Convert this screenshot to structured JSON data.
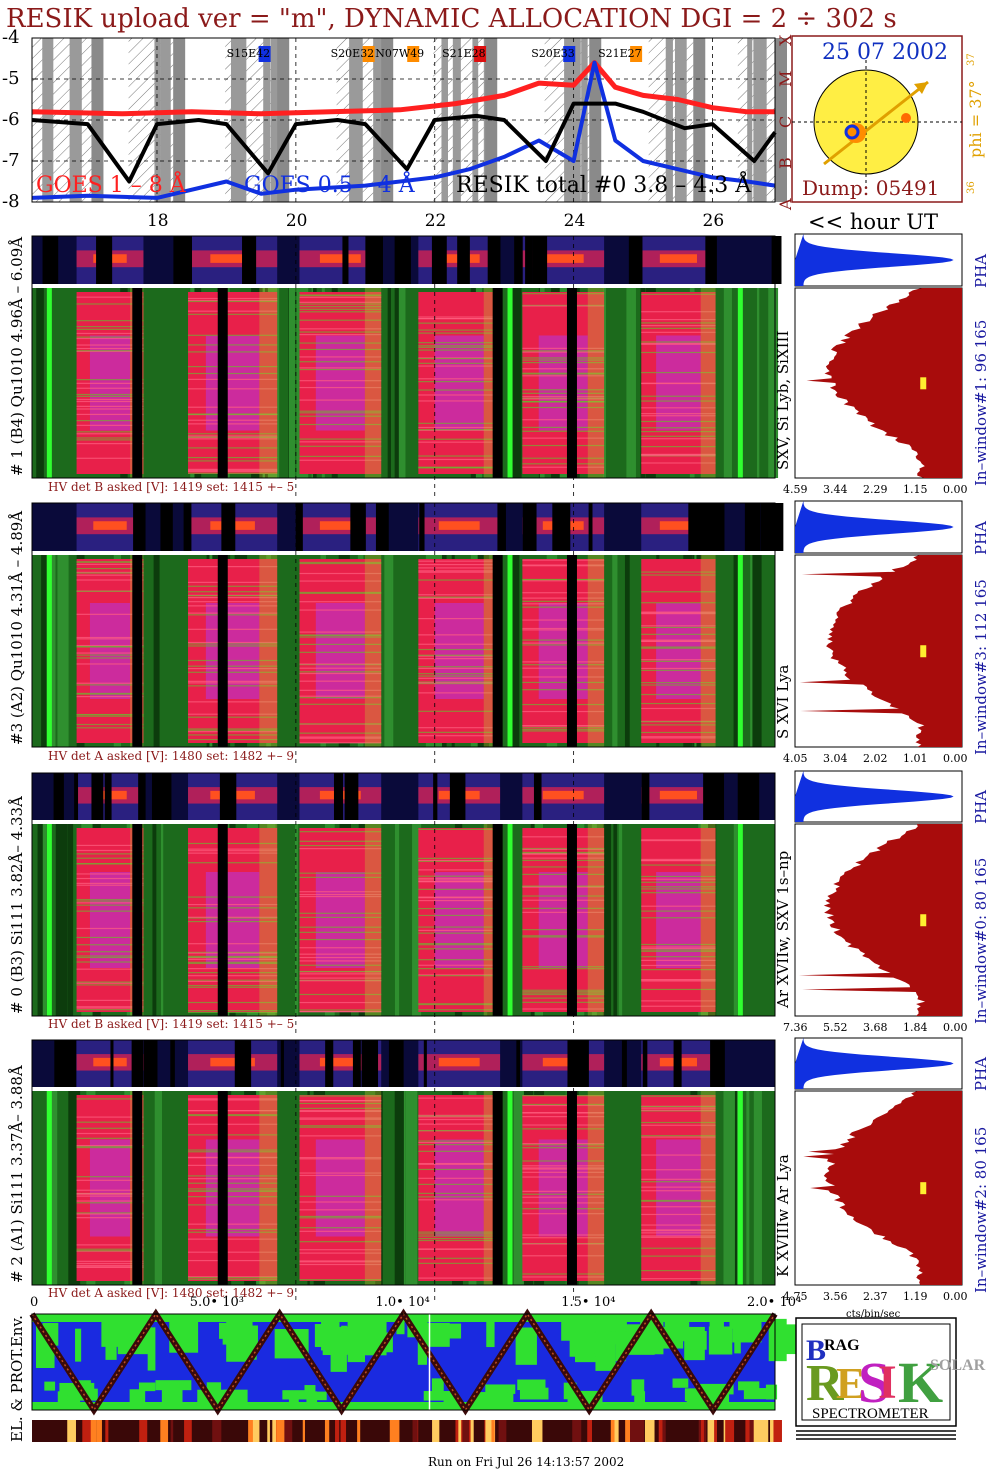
{
  "title": "RESIK upload ver = \"m\", DYNAMIC ALLOCATION  DGI =   2 ÷ 302 s",
  "goes_panel": {
    "y_ticks": [
      "-4",
      "-5",
      "-6",
      "-7",
      "-8"
    ],
    "class_letters": [
      "X",
      "M",
      "C",
      "B",
      "A"
    ],
    "active_regions": [
      "S15E42",
      "S20E32",
      "N07W49",
      "S21E28",
      "S20E33",
      "S21E27"
    ],
    "legend_goes_long": "GOES 1 – 8 Å",
    "legend_goes_short": "GOES 0.5 – 4 Å",
    "legend_resik": "RESIK total #0  3.8 – 4.3 Å",
    "colors": {
      "goes_long": "#ff2020",
      "goes_short": "#1030e0",
      "resik": "#000000"
    }
  },
  "sun_panel": {
    "date": "25 07 2002",
    "dump": "Dump: 05491",
    "phi_label": "phi = 37°",
    "phi_top": "37",
    "phi_bottom": "36"
  },
  "time_axis": {
    "hour_ticks": [
      "18",
      "20",
      "22",
      "24",
      "26"
    ],
    "unit_label": "<< hour UT"
  },
  "detectors": [
    {
      "label": "# 1 (B4) Qu1010 4.96Å – 6.09Å",
      "hv": "HV det B asked [V]:  1419 set:  1415  +–    5",
      "line_label": "SXV, Si Lyb, SiXIII",
      "window_label": "In–window#1:   96 165",
      "pha": "PHA",
      "cts_ticks": [
        "4.59",
        "3.44",
        "2.29",
        "1.15",
        "0.00"
      ]
    },
    {
      "label": "#3 (A2) Qu1010  4.31Å – 4.89Å",
      "hv": "HV det A asked [V]:  1480 set:  1482  +–    9",
      "line_label": "S XVI Lya",
      "window_label": "In–window#3:  112 165",
      "pha": "PHA",
      "cts_ticks": [
        "4.05",
        "3.04",
        "2.02",
        "1.01",
        "0.00"
      ]
    },
    {
      "label": "# 0 (B3) Si111  3.82Å– 4.33Å",
      "hv": "HV det B asked [V]:  1419 set:  1415  +–    5",
      "line_label": "Ar XVIIw,  SXV 1s–np",
      "window_label": "In–window#0:   80 165",
      "pha": "PHA",
      "cts_ticks": [
        "7.36",
        "5.52",
        "3.68",
        "1.84",
        "0.00"
      ]
    },
    {
      "label": "# 2 (A1) Si111  3.37Å–  3.88Å",
      "hv": "HV det A asked [V]:  1480 set:  1482  +–    9",
      "line_label": "K XVIIIw  Ar Lya",
      "window_label": "In–window#2:   80 165",
      "pha": "PHA",
      "cts_ticks": [
        "4.75",
        "3.56",
        "2.37",
        "1.19",
        "0.00"
      ]
    }
  ],
  "cts_unit": "cts/bin/sec",
  "env_panel": {
    "label": "EL. & PROT.Env.",
    "seconds_ticks": [
      "0",
      "5.0• 10³",
      "1.0• 10⁴",
      "1.5• 10⁴",
      "2.0• 10⁴"
    ]
  },
  "logo": {
    "letters": [
      "RESIK"
    ],
    "sub_b": "B",
    "sub_rag": "RAG",
    "sub_solar": "SOLAR",
    "word": "SPECTROMETER"
  },
  "footer": "Run on Fri Jul 26 14:13:57 2002",
  "chart_data": {
    "type": "line",
    "title": "RESIK upload ver = \"m\", DYNAMIC ALLOCATION  DGI =   2 ÷ 302 s",
    "xlabel": "hour UT",
    "ylabel": "",
    "xlim": [
      16.2,
      26.9
    ],
    "ylim": [
      -8,
      -4
    ],
    "y_scale": "log10 flux",
    "series": [
      {
        "name": "GOES 1 – 8 Å",
        "x": [
          16.2,
          17.5,
          18.5,
          19.5,
          20.5,
          21.5,
          22.3,
          23.0,
          23.5,
          24.0,
          24.3,
          24.6,
          25.0,
          25.5,
          26.0,
          26.5,
          26.9
        ],
        "values": [
          -5.8,
          -5.85,
          -5.8,
          -5.85,
          -5.8,
          -5.75,
          -5.6,
          -5.4,
          -5.1,
          -5.15,
          -4.6,
          -5.2,
          -5.4,
          -5.5,
          -5.7,
          -5.8,
          -5.8
        ]
      },
      {
        "name": "GOES 0.5 – 4 Å",
        "x": [
          16.2,
          17.0,
          18.0,
          19.0,
          19.5,
          20.0,
          21.0,
          22.0,
          22.5,
          23.0,
          23.5,
          24.0,
          24.3,
          24.6,
          25.0,
          25.5,
          26.0,
          26.5,
          26.9
        ],
        "values": [
          -7.9,
          -7.85,
          -7.9,
          -7.5,
          -7.8,
          -7.7,
          -7.6,
          -7.4,
          -7.2,
          -6.9,
          -6.5,
          -7.0,
          -4.6,
          -6.5,
          -7.0,
          -7.2,
          -7.4,
          -7.5,
          -7.6
        ]
      },
      {
        "name": "RESIK total #0  3.8 – 4.3 Å",
        "x": [
          16.2,
          17.0,
          17.6,
          18.0,
          18.6,
          19.0,
          19.6,
          20.0,
          20.6,
          21.0,
          21.6,
          22.0,
          22.6,
          23.0,
          23.6,
          24.0,
          24.6,
          25.0,
          25.6,
          26.0,
          26.6,
          26.9
        ],
        "values": [
          -6.0,
          -6.1,
          -7.5,
          -6.1,
          -6.0,
          -6.1,
          -7.3,
          -6.1,
          -6.0,
          -6.1,
          -7.2,
          -6.0,
          -5.9,
          -6.0,
          -7.0,
          -5.6,
          -5.6,
          -5.8,
          -6.2,
          -6.1,
          -7.0,
          -6.3
        ]
      }
    ]
  }
}
